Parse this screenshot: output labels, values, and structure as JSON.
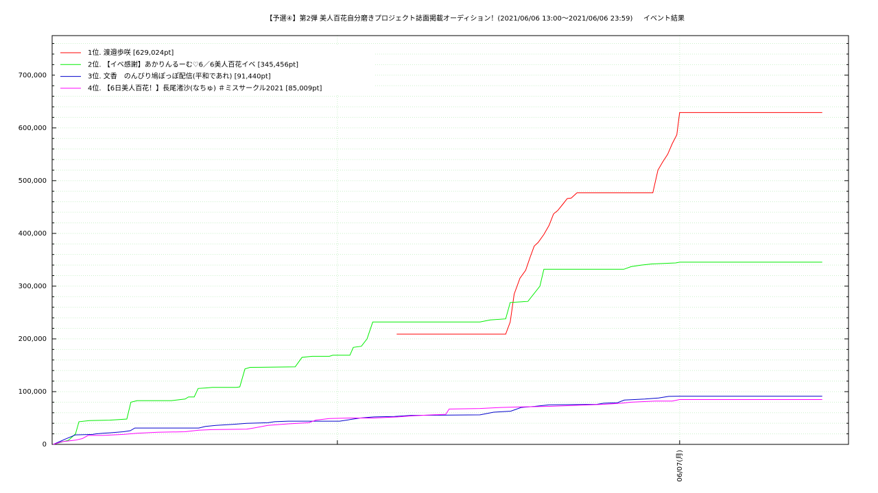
{
  "chart_data": {
    "type": "line",
    "title": "【予選④】第2弾 美人百花自分磨きプロジェクト誌面掲載オーディション！(2021/06/06 13:00～2021/06/06 23:59)",
    "subtitle": "イベント結果",
    "xlim": [
      0,
      13.96
    ],
    "xticks": [
      {
        "value": 11,
        "label": "06/07(月)"
      }
    ],
    "xminor_ticks": [
      5
    ],
    "ylim": [
      0,
      775000
    ],
    "yticks": [
      0,
      {
        "value": 100000,
        "label": "100,000"
      },
      {
        "value": 200000,
        "label": "200,000"
      },
      {
        "value": 300000,
        "label": "300,000"
      },
      {
        "value": 400000,
        "label": "400,000"
      },
      {
        "value": 500000,
        "label": "500,000"
      },
      {
        "value": 600000,
        "label": "600,000"
      },
      {
        "value": 700000,
        "label": "700,000"
      }
    ],
    "grid": true,
    "legend": "top-left",
    "series": [
      {
        "name": "1位. 渡邉歩咲 [629,024pt]",
        "color": "#ff0000",
        "x": [
          6.04,
          7.95,
          8.03,
          8.1,
          8.2,
          8.3,
          8.38,
          8.45,
          8.52,
          8.62,
          8.71,
          8.79,
          8.86,
          8.95,
          9.03,
          9.1,
          9.2,
          10.53,
          10.62,
          10.7,
          10.79,
          10.87,
          10.95,
          11.0,
          13.5
        ],
        "values": [
          209000,
          209000,
          232000,
          285000,
          315000,
          330000,
          355000,
          376000,
          383000,
          398000,
          415000,
          437000,
          443000,
          455000,
          466000,
          467000,
          477000,
          477000,
          520000,
          535000,
          550000,
          570000,
          587000,
          629024,
          629024
        ]
      },
      {
        "name": "2位. 【イベ感謝】あかりんるーむ♡6／6美人百花イベ [345,456pt]",
        "color": "#00ee00",
        "x": [
          0.02,
          0.29,
          0.41,
          0.47,
          0.65,
          1.01,
          1.31,
          1.38,
          1.49,
          2.09,
          2.33,
          2.39,
          2.49,
          2.56,
          2.69,
          2.81,
          3.23,
          3.29,
          3.38,
          3.47,
          4.26,
          4.38,
          4.56,
          4.86,
          4.92,
          5.22,
          5.28,
          5.42,
          5.52,
          5.62,
          7.5,
          7.68,
          7.95,
          8.03,
          8.34,
          8.55,
          8.62,
          10.02,
          10.15,
          10.33,
          10.51,
          10.93,
          11.0,
          13.5
        ],
        "values": [
          0,
          8000,
          20000,
          43000,
          45000,
          46000,
          48000,
          80000,
          83000,
          83000,
          86000,
          90000,
          90000,
          106000,
          107000,
          108000,
          108000,
          109000,
          143000,
          146000,
          147000,
          165000,
          167000,
          167000,
          169000,
          169000,
          184000,
          186000,
          200000,
          232000,
          232000,
          236000,
          238000,
          269000,
          271000,
          300000,
          332000,
          332000,
          337000,
          340000,
          342000,
          344000,
          345456,
          345456
        ]
      },
      {
        "name": "3位. 文香　のんびり鳩ぽっぽ配信(平和であれ) [91,440pt]",
        "color": "#0000cc",
        "x": [
          0.02,
          0.23,
          0.41,
          0.71,
          0.77,
          0.89,
          1.01,
          1.25,
          1.37,
          1.45,
          2.57,
          2.69,
          2.87,
          3.17,
          3.41,
          3.78,
          3.9,
          4.14,
          5.04,
          5.22,
          5.4,
          5.64,
          6.0,
          6.3,
          7.5,
          7.74,
          8.04,
          8.22,
          8.46,
          8.71,
          9.55,
          9.67,
          9.91,
          10.03,
          10.39,
          10.63,
          10.81,
          11.0,
          13.5
        ],
        "values": [
          0,
          10000,
          18000,
          19000,
          20000,
          21000,
          22000,
          24000,
          26000,
          31000,
          31000,
          34000,
          36000,
          38000,
          40000,
          41000,
          43000,
          44000,
          44000,
          47000,
          50000,
          52000,
          53000,
          55000,
          56000,
          61000,
          63000,
          70000,
          72000,
          75000,
          76000,
          78000,
          79000,
          84000,
          86000,
          88000,
          91000,
          91440,
          91440
        ]
      },
      {
        "name": "4位. 【6日美人百花！】長尾渚沙(なちゅ) ＃ミスサークル2021 [85,009pt]",
        "color": "#ff00ff",
        "x": [
          0.02,
          0.17,
          0.41,
          0.53,
          0.63,
          0.89,
          1.25,
          1.49,
          1.85,
          2.33,
          2.57,
          2.81,
          3.41,
          3.53,
          3.78,
          3.9,
          4.14,
          4.5,
          4.62,
          4.86,
          5.22,
          5.64,
          6.06,
          6.3,
          6.66,
          6.9,
          6.96,
          7.5,
          7.86,
          8.22,
          8.71,
          9.19,
          9.67,
          9.97,
          10.15,
          10.57,
          10.87,
          11.0,
          13.5
        ],
        "values": [
          0,
          5000,
          8000,
          11000,
          17000,
          17000,
          19000,
          21000,
          23000,
          24000,
          27000,
          28000,
          29000,
          31000,
          36000,
          37000,
          39000,
          41000,
          46000,
          49000,
          50000,
          50000,
          52000,
          54000,
          56000,
          57000,
          67000,
          68000,
          70000,
          71000,
          72000,
          74000,
          76000,
          78000,
          80000,
          82000,
          82000,
          85009,
          85009
        ]
      }
    ]
  }
}
